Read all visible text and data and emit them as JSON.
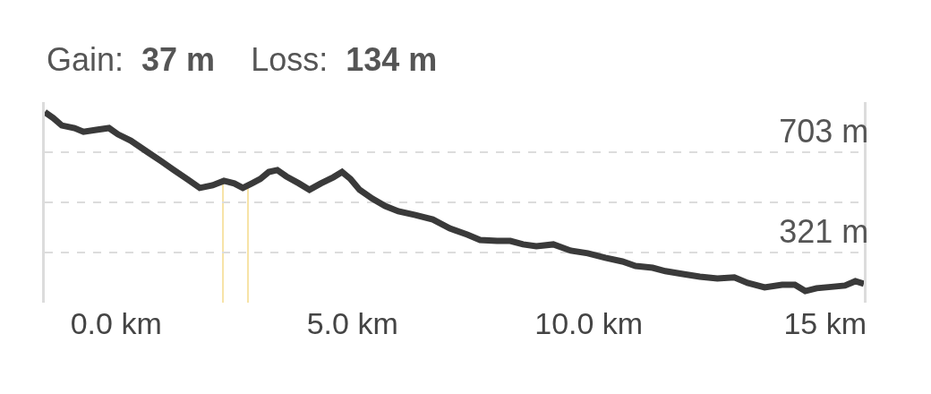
{
  "chart_data": {
    "type": "line",
    "annotations": [
      "Gain:",
      "37 m",
      "Loss:",
      "134 m"
    ],
    "x": [
      -1.51,
      -1.33,
      -1.15,
      -0.88,
      -0.69,
      -0.42,
      -0.15,
      0.04,
      0.31,
      0.67,
      0.95,
      1.22,
      1.5,
      1.77,
      2.04,
      2.28,
      2.5,
      2.68,
      2.87,
      3.05,
      3.23,
      3.41,
      3.6,
      3.87,
      4.09,
      4.33,
      4.6,
      4.78,
      4.96,
      5.15,
      5.42,
      5.69,
      5.97,
      6.33,
      6.7,
      7.06,
      7.43,
      7.7,
      8.06,
      8.34,
      8.61,
      8.89,
      9.25,
      9.62,
      9.98,
      10.35,
      10.71,
      10.99,
      11.35,
      11.62,
      11.99,
      12.35,
      12.72,
      13.08,
      13.36,
      13.72,
      14.09,
      14.36,
      14.58,
      14.82,
      15.18,
      15.42,
      15.64,
      15.82
    ],
    "series": [
      {
        "color": "#3a3a3a",
        "values": [
          856,
          833,
          805,
          795,
          781,
          788,
          795,
          771,
          747,
          703,
          669,
          635,
          601,
          567,
          577,
          594,
          584,
          567,
          584,
          601,
          628,
          635,
          611,
          584,
          560,
          584,
          608,
          628,
          601,
          560,
          526,
          498,
          478,
          464,
          447,
          413,
          389,
          369,
          365,
          365,
          352,
          345,
          352,
          328,
          318,
          301,
          287,
          270,
          263,
          250,
          239,
          229,
          222,
          226,
          205,
          188,
          198,
          198,
          174,
          185,
          191,
          195,
          212,
          202
        ]
      }
    ],
    "xlim": [
      -1.51,
      15.82
    ],
    "xticks": [
      {
        "value": 0,
        "label": "0.0 km"
      },
      {
        "value": 5,
        "label": "5.0 km"
      },
      {
        "value": 10,
        "label": "10.0 km"
      },
      {
        "value": 15,
        "label": "15 km"
      }
    ],
    "ylim": [
      130,
      894
    ],
    "yticks": [
      {
        "value": 321,
        "label": "321 m"
      },
      {
        "value": 512,
        "label": null
      },
      {
        "value": 703,
        "label": "703 m"
      }
    ],
    "grid": "y",
    "line_style": "solid",
    "marker": "none",
    "ref_lines": [
      {
        "axis": "x",
        "value": 2.26,
        "color": "#f7e3a6"
      },
      {
        "axis": "x",
        "value": 2.79,
        "color": "#f7e3a6"
      }
    ]
  }
}
